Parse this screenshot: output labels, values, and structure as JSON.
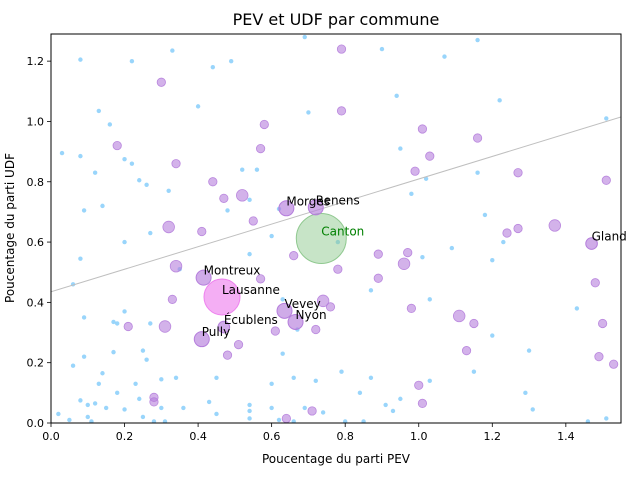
{
  "chart_data": {
    "type": "scatter",
    "title": "PEV et UDF par commune",
    "xlabel": "Poucentage du parti PEV",
    "ylabel": "Poucentage du parti UDF",
    "xlim": [
      0,
      1.55
    ],
    "ylim": [
      0,
      1.29
    ],
    "xticks": [
      0.0,
      0.2,
      0.4,
      0.6,
      0.8,
      1.0,
      1.2,
      1.4
    ],
    "yticks": [
      0.0,
      0.2,
      0.4,
      0.6,
      0.8,
      1.0,
      1.2
    ],
    "grid": false,
    "regression_line": {
      "x": [
        0,
        1.55
      ],
      "y": [
        0.435,
        1.015
      ],
      "color": "#bfbfbf"
    },
    "colors": {
      "small": "#87cefa",
      "medium": "#b57edc",
      "large": "#ee82ee",
      "canton": "#90c990",
      "canton_label": "#008000"
    },
    "highlighted": [
      {
        "label": "Canton",
        "x": 0.735,
        "y": 0.612,
        "size": "xlarge",
        "color": "#90c990"
      },
      {
        "label": "Lausanne",
        "x": 0.465,
        "y": 0.418,
        "size": "xlarge",
        "color": "#ee82ee"
      },
      {
        "label": "Montreux",
        "x": 0.415,
        "y": 0.482,
        "size": "medium",
        "color": "#b57edc"
      },
      {
        "label": "Morges",
        "x": 0.64,
        "y": 0.712,
        "size": "medium",
        "color": "#b57edc"
      },
      {
        "label": "Renens",
        "x": 0.72,
        "y": 0.715,
        "size": "medium",
        "color": "#b57edc"
      },
      {
        "label": "Vevey",
        "x": 0.635,
        "y": 0.372,
        "size": "medium",
        "color": "#b57edc"
      },
      {
        "label": "Nyon",
        "x": 0.665,
        "y": 0.335,
        "size": "medium",
        "color": "#b57edc"
      },
      {
        "label": "Écublens",
        "x": 0.47,
        "y": 0.318,
        "size": "small",
        "color": "#b57edc"
      },
      {
        "label": "Pully",
        "x": 0.41,
        "y": 0.278,
        "size": "medium",
        "color": "#b57edc"
      },
      {
        "label": "Gland",
        "x": 1.47,
        "y": 0.595,
        "size": "small",
        "color": "#b57edc"
      }
    ],
    "points": [
      {
        "x": 0.08,
        "y": 1.205,
        "s": "xs"
      },
      {
        "x": 0.33,
        "y": 1.235,
        "s": "xs"
      },
      {
        "x": 0.22,
        "y": 1.2,
        "s": "xs"
      },
      {
        "x": 0.13,
        "y": 1.035,
        "s": "xs"
      },
      {
        "x": 0.16,
        "y": 0.99,
        "s": "xs"
      },
      {
        "x": 0.03,
        "y": 0.895,
        "s": "xs"
      },
      {
        "x": 0.08,
        "y": 0.885,
        "s": "xs"
      },
      {
        "x": 0.2,
        "y": 0.875,
        "s": "xs"
      },
      {
        "x": 0.22,
        "y": 0.86,
        "s": "xs"
      },
      {
        "x": 0.12,
        "y": 0.83,
        "s": "xs"
      },
      {
        "x": 0.24,
        "y": 0.805,
        "s": "xs"
      },
      {
        "x": 0.26,
        "y": 0.79,
        "s": "xs"
      },
      {
        "x": 0.32,
        "y": 0.77,
        "s": "xs"
      },
      {
        "x": 0.14,
        "y": 0.72,
        "s": "xs"
      },
      {
        "x": 0.09,
        "y": 0.705,
        "s": "xs"
      },
      {
        "x": 0.27,
        "y": 0.63,
        "s": "xs"
      },
      {
        "x": 0.2,
        "y": 0.6,
        "s": "xs"
      },
      {
        "x": 0.08,
        "y": 0.545,
        "s": "xs"
      },
      {
        "x": 0.06,
        "y": 0.46,
        "s": "xs"
      },
      {
        "x": 0.35,
        "y": 0.51,
        "s": "xs"
      },
      {
        "x": 0.2,
        "y": 0.37,
        "s": "xs"
      },
      {
        "x": 0.09,
        "y": 0.35,
        "s": "xs"
      },
      {
        "x": 0.17,
        "y": 0.335,
        "s": "xs"
      },
      {
        "x": 0.18,
        "y": 0.33,
        "s": "xs"
      },
      {
        "x": 0.27,
        "y": 0.33,
        "s": "xs"
      },
      {
        "x": 0.25,
        "y": 0.24,
        "s": "xs"
      },
      {
        "x": 0.26,
        "y": 0.21,
        "s": "xs"
      },
      {
        "x": 0.17,
        "y": 0.235,
        "s": "xs"
      },
      {
        "x": 0.09,
        "y": 0.22,
        "s": "xs"
      },
      {
        "x": 0.06,
        "y": 0.19,
        "s": "xs"
      },
      {
        "x": 0.14,
        "y": 0.165,
        "s": "xs"
      },
      {
        "x": 0.13,
        "y": 0.13,
        "s": "xs"
      },
      {
        "x": 0.23,
        "y": 0.13,
        "s": "xs"
      },
      {
        "x": 0.3,
        "y": 0.145,
        "s": "xs"
      },
      {
        "x": 0.34,
        "y": 0.15,
        "s": "xs"
      },
      {
        "x": 0.18,
        "y": 0.1,
        "s": "xs"
      },
      {
        "x": 0.24,
        "y": 0.08,
        "s": "xs"
      },
      {
        "x": 0.08,
        "y": 0.075,
        "s": "xs"
      },
      {
        "x": 0.12,
        "y": 0.065,
        "s": "xs"
      },
      {
        "x": 0.1,
        "y": 0.06,
        "s": "xs"
      },
      {
        "x": 0.15,
        "y": 0.05,
        "s": "xs"
      },
      {
        "x": 0.2,
        "y": 0.045,
        "s": "xs"
      },
      {
        "x": 0.3,
        "y": 0.05,
        "s": "xs"
      },
      {
        "x": 0.36,
        "y": 0.05,
        "s": "xs"
      },
      {
        "x": 0.02,
        "y": 0.03,
        "s": "xs"
      },
      {
        "x": 0.05,
        "y": 0.01,
        "s": "xs"
      },
      {
        "x": 0.1,
        "y": 0.02,
        "s": "xs"
      },
      {
        "x": 0.25,
        "y": 0.02,
        "s": "xs"
      },
      {
        "x": 0.28,
        "y": 0.005,
        "s": "xs"
      },
      {
        "x": 0.31,
        "y": 0.005,
        "s": "xs"
      },
      {
        "x": 0.44,
        "y": 1.18,
        "s": "xs"
      },
      {
        "x": 0.49,
        "y": 1.2,
        "s": "xs"
      },
      {
        "x": 0.69,
        "y": 1.28,
        "s": "xs"
      },
      {
        "x": 0.9,
        "y": 1.24,
        "s": "xs"
      },
      {
        "x": 1.07,
        "y": 1.215,
        "s": "xs"
      },
      {
        "x": 1.16,
        "y": 1.27,
        "s": "xs"
      },
      {
        "x": 0.94,
        "y": 1.085,
        "s": "xs"
      },
      {
        "x": 1.22,
        "y": 1.07,
        "s": "xs"
      },
      {
        "x": 0.7,
        "y": 1.03,
        "s": "xs"
      },
      {
        "x": 0.4,
        "y": 1.05,
        "s": "xs"
      },
      {
        "x": 0.95,
        "y": 0.91,
        "s": "xs"
      },
      {
        "x": 1.16,
        "y": 0.83,
        "s": "xs"
      },
      {
        "x": 1.02,
        "y": 0.81,
        "s": "xs"
      },
      {
        "x": 0.52,
        "y": 0.84,
        "s": "xs"
      },
      {
        "x": 0.56,
        "y": 0.84,
        "s": "xs"
      },
      {
        "x": 0.54,
        "y": 0.74,
        "s": "xs"
      },
      {
        "x": 0.48,
        "y": 0.705,
        "s": "xs"
      },
      {
        "x": 0.62,
        "y": 0.71,
        "s": "xs"
      },
      {
        "x": 1.18,
        "y": 0.69,
        "s": "xs"
      },
      {
        "x": 0.98,
        "y": 0.76,
        "s": "xs"
      },
      {
        "x": 1.23,
        "y": 0.6,
        "s": "xs"
      },
      {
        "x": 1.2,
        "y": 0.54,
        "s": "xs"
      },
      {
        "x": 1.09,
        "y": 0.58,
        "s": "xs"
      },
      {
        "x": 1.01,
        "y": 0.55,
        "s": "xs"
      },
      {
        "x": 0.87,
        "y": 0.44,
        "s": "xs"
      },
      {
        "x": 1.03,
        "y": 0.41,
        "s": "xs"
      },
      {
        "x": 0.63,
        "y": 0.41,
        "s": "xs"
      },
      {
        "x": 0.54,
        "y": 0.56,
        "s": "xs"
      },
      {
        "x": 0.6,
        "y": 0.62,
        "s": "xs"
      },
      {
        "x": 0.78,
        "y": 0.6,
        "s": "xs"
      },
      {
        "x": 1.3,
        "y": 0.24,
        "s": "xs"
      },
      {
        "x": 1.43,
        "y": 0.38,
        "s": "xs"
      },
      {
        "x": 1.2,
        "y": 0.29,
        "s": "xs"
      },
      {
        "x": 1.15,
        "y": 0.17,
        "s": "xs"
      },
      {
        "x": 0.79,
        "y": 0.17,
        "s": "xs"
      },
      {
        "x": 0.87,
        "y": 0.15,
        "s": "xs"
      },
      {
        "x": 1.03,
        "y": 0.14,
        "s": "xs"
      },
      {
        "x": 0.6,
        "y": 0.13,
        "s": "xs"
      },
      {
        "x": 0.66,
        "y": 0.15,
        "s": "xs"
      },
      {
        "x": 0.72,
        "y": 0.14,
        "s": "xs"
      },
      {
        "x": 0.63,
        "y": 0.23,
        "s": "xs"
      },
      {
        "x": 0.67,
        "y": 0.31,
        "s": "xs"
      },
      {
        "x": 0.45,
        "y": 0.15,
        "s": "xs"
      },
      {
        "x": 0.43,
        "y": 0.07,
        "s": "xs"
      },
      {
        "x": 0.54,
        "y": 0.06,
        "s": "xs"
      },
      {
        "x": 0.6,
        "y": 0.05,
        "s": "xs"
      },
      {
        "x": 0.45,
        "y": 0.03,
        "s": "xs"
      },
      {
        "x": 0.54,
        "y": 0.04,
        "s": "xs"
      },
      {
        "x": 0.69,
        "y": 0.05,
        "s": "xs"
      },
      {
        "x": 0.74,
        "y": 0.035,
        "s": "xs"
      },
      {
        "x": 0.84,
        "y": 0.1,
        "s": "xs"
      },
      {
        "x": 0.91,
        "y": 0.06,
        "s": "xs"
      },
      {
        "x": 0.93,
        "y": 0.04,
        "s": "xs"
      },
      {
        "x": 0.95,
        "y": 0.08,
        "s": "xs"
      },
      {
        "x": 1.29,
        "y": 0.1,
        "s": "xs"
      },
      {
        "x": 1.31,
        "y": 0.045,
        "s": "xs"
      },
      {
        "x": 1.51,
        "y": 1.01,
        "s": "xs"
      },
      {
        "x": 1.51,
        "y": 0.015,
        "s": "xs"
      },
      {
        "x": 0.62,
        "y": 0.01,
        "s": "xs"
      },
      {
        "x": 0.66,
        "y": 0.005,
        "s": "xs"
      },
      {
        "x": 0.54,
        "y": 0.015,
        "s": "xs"
      },
      {
        "x": 0.8,
        "y": 0.005,
        "s": "xs"
      },
      {
        "x": 0.85,
        "y": 0.005,
        "s": "xs"
      },
      {
        "x": 0.11,
        "y": 0.005,
        "s": "xs"
      },
      {
        "x": 1.46,
        "y": 0.005,
        "s": "xs"
      },
      {
        "x": 0.3,
        "y": 1.13,
        "s": "m"
      },
      {
        "x": 0.79,
        "y": 1.24,
        "s": "m"
      },
      {
        "x": 0.58,
        "y": 0.99,
        "s": "m"
      },
      {
        "x": 0.79,
        "y": 1.035,
        "s": "m"
      },
      {
        "x": 1.03,
        "y": 0.885,
        "s": "m"
      },
      {
        "x": 1.01,
        "y": 0.975,
        "s": "m"
      },
      {
        "x": 1.16,
        "y": 0.945,
        "s": "m"
      },
      {
        "x": 0.18,
        "y": 0.92,
        "s": "m"
      },
      {
        "x": 0.34,
        "y": 0.86,
        "s": "m"
      },
      {
        "x": 0.57,
        "y": 0.91,
        "s": "m"
      },
      {
        "x": 0.44,
        "y": 0.8,
        "s": "m"
      },
      {
        "x": 0.99,
        "y": 0.835,
        "s": "m"
      },
      {
        "x": 1.27,
        "y": 0.83,
        "s": "m"
      },
      {
        "x": 1.51,
        "y": 0.805,
        "s": "m"
      },
      {
        "x": 0.47,
        "y": 0.745,
        "s": "m"
      },
      {
        "x": 0.52,
        "y": 0.755,
        "s": "l"
      },
      {
        "x": 0.55,
        "y": 0.67,
        "s": "m"
      },
      {
        "x": 0.41,
        "y": 0.635,
        "s": "m"
      },
      {
        "x": 0.32,
        "y": 0.65,
        "s": "l"
      },
      {
        "x": 1.37,
        "y": 0.655,
        "s": "l"
      },
      {
        "x": 1.24,
        "y": 0.63,
        "s": "m"
      },
      {
        "x": 1.27,
        "y": 0.645,
        "s": "m"
      },
      {
        "x": 0.66,
        "y": 0.555,
        "s": "m"
      },
      {
        "x": 0.89,
        "y": 0.56,
        "s": "m"
      },
      {
        "x": 0.97,
        "y": 0.565,
        "s": "m"
      },
      {
        "x": 0.96,
        "y": 0.528,
        "s": "l"
      },
      {
        "x": 0.34,
        "y": 0.52,
        "s": "l"
      },
      {
        "x": 0.78,
        "y": 0.51,
        "s": "m"
      },
      {
        "x": 0.89,
        "y": 0.48,
        "s": "m"
      },
      {
        "x": 0.57,
        "y": 0.478,
        "s": "m"
      },
      {
        "x": 1.48,
        "y": 0.465,
        "s": "m"
      },
      {
        "x": 0.33,
        "y": 0.41,
        "s": "m"
      },
      {
        "x": 0.74,
        "y": 0.405,
        "s": "l"
      },
      {
        "x": 0.76,
        "y": 0.385,
        "s": "m"
      },
      {
        "x": 0.98,
        "y": 0.38,
        "s": "m"
      },
      {
        "x": 1.11,
        "y": 0.355,
        "s": "l"
      },
      {
        "x": 1.15,
        "y": 0.33,
        "s": "m"
      },
      {
        "x": 1.5,
        "y": 0.33,
        "s": "m"
      },
      {
        "x": 0.21,
        "y": 0.32,
        "s": "m"
      },
      {
        "x": 0.31,
        "y": 0.32,
        "s": "l"
      },
      {
        "x": 0.72,
        "y": 0.31,
        "s": "m"
      },
      {
        "x": 0.61,
        "y": 0.305,
        "s": "m"
      },
      {
        "x": 0.51,
        "y": 0.26,
        "s": "m"
      },
      {
        "x": 1.13,
        "y": 0.24,
        "s": "m"
      },
      {
        "x": 0.48,
        "y": 0.225,
        "s": "m"
      },
      {
        "x": 1.49,
        "y": 0.22,
        "s": "m"
      },
      {
        "x": 1.53,
        "y": 0.195,
        "s": "m"
      },
      {
        "x": 1.0,
        "y": 0.125,
        "s": "m"
      },
      {
        "x": 0.28,
        "y": 0.085,
        "s": "m"
      },
      {
        "x": 0.28,
        "y": 0.07,
        "s": "m"
      },
      {
        "x": 1.01,
        "y": 0.065,
        "s": "m"
      },
      {
        "x": 0.71,
        "y": 0.04,
        "s": "m"
      },
      {
        "x": 0.64,
        "y": 0.015,
        "s": "m"
      }
    ]
  }
}
